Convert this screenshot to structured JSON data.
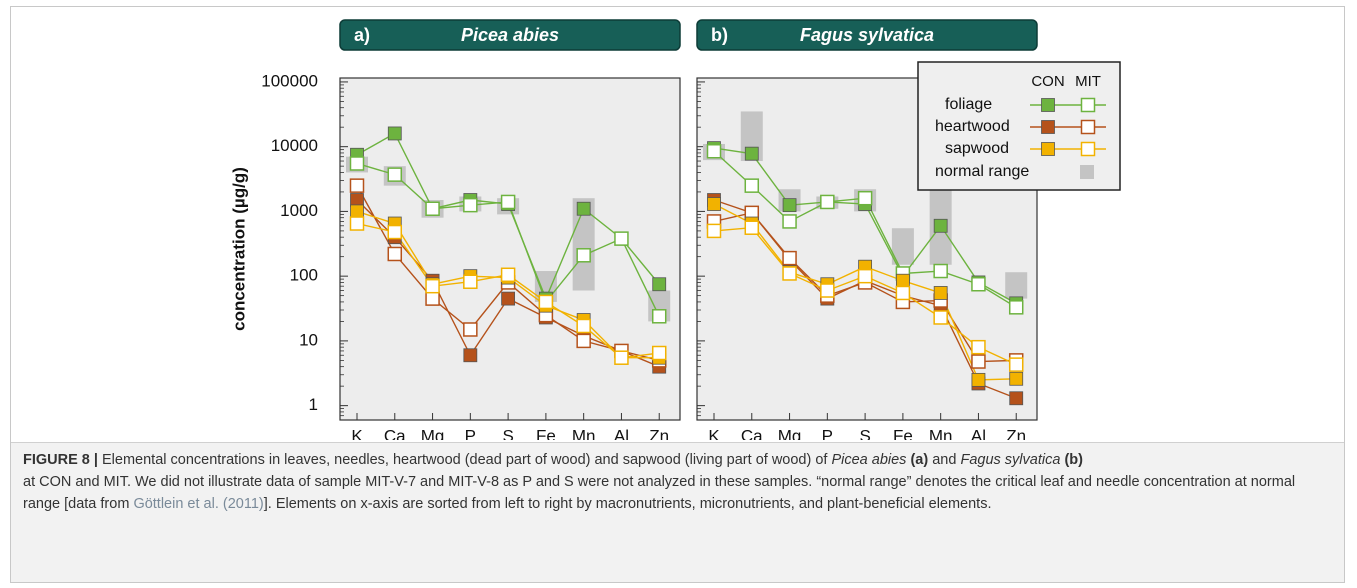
{
  "chart_data": [
    {
      "type": "line",
      "panel_label": "a)",
      "species": "Picea abies",
      "y_label": "concentration (µg/g)",
      "categories": [
        "K",
        "Ca",
        "Mg",
        "P",
        "S",
        "Fe",
        "Mn",
        "Al",
        "Zn"
      ],
      "log_scale": true,
      "ylim": [
        0.6,
        115000
      ],
      "yticks": [
        1,
        10,
        100,
        1000,
        10000,
        100000
      ],
      "ranges": [
        [
          4000,
          7000
        ],
        [
          2500,
          5000
        ],
        [
          800,
          1500
        ],
        [
          1000,
          1700
        ],
        [
          900,
          1600
        ],
        [
          40,
          120
        ],
        [
          60,
          1600
        ],
        null,
        [
          20,
          60
        ]
      ],
      "series": [
        {
          "values": [
            [
              7500,
              16000,
              1100,
              1500,
              1300,
              45,
              1100,
              380,
              75
            ],
            [
              5500,
              3700,
              1100,
              1250,
              1400,
              40,
              210,
              380,
              24
            ]
          ]
        },
        {
          "values": [
            [
              1500,
              400,
              85,
              6,
              45,
              23,
              12,
              7,
              4
            ],
            [
              2500,
              220,
              45,
              15,
              80,
              25,
              10,
              7,
              5
            ]
          ]
        },
        {
          "values": [
            [
              1000,
              650,
              75,
              100,
              95,
              35,
              21,
              5.5,
              5.5
            ],
            [
              650,
              480,
              70,
              82,
              105,
              40,
              17,
              5.5,
              6.5
            ]
          ]
        }
      ]
    },
    {
      "type": "line",
      "panel_label": "b)",
      "species": "Fagus sylvatica",
      "categories": [
        "K",
        "Ca",
        "Mg",
        "P",
        "S",
        "Fe",
        "Mn",
        "Al",
        "Zn"
      ],
      "log_scale": true,
      "ylim": [
        0.6,
        115000
      ],
      "ranges": [
        [
          6200,
          11000
        ],
        [
          6000,
          35000
        ],
        [
          1000,
          2200
        ],
        [
          1100,
          1700
        ],
        [
          1000,
          2200
        ],
        [
          150,
          550
        ],
        [
          150,
          2200
        ],
        null,
        [
          45,
          115
        ]
      ],
      "series": [
        {
          "values": [
            [
              9500,
              7800,
              1250,
              1400,
              1300,
              100,
              600,
              80,
              38
            ],
            [
              8500,
              2500,
              700,
              1400,
              1600,
              110,
              120,
              75,
              33
            ]
          ]
        },
        {
          "values": [
            [
              1500,
              950,
              180,
              45,
              85,
              50,
              35,
              2.2,
              1.3
            ],
            [
              700,
              950,
              190,
              50,
              80,
              40,
              42,
              4.8,
              5
            ]
          ]
        },
        {
          "values": [
            [
              1300,
              650,
              115,
              75,
              140,
              85,
              55,
              2.5,
              2.6
            ],
            [
              500,
              560,
              110,
              60,
              100,
              55,
              23,
              8,
              4.3
            ]
          ]
        }
      ]
    }
  ],
  "legend": {
    "groups": [
      "CON",
      "MIT"
    ],
    "series": [
      {
        "name": "foliage",
        "color": "#6db33f"
      },
      {
        "name": "heartwood",
        "color": "#b5521b"
      },
      {
        "name": "sapwood",
        "color": "#f2b200"
      }
    ],
    "range_label": "normal range",
    "range_color": "#c4c4c4"
  },
  "caption": {
    "label": "FIGURE 8 |",
    "text1": "Elemental concentrations in leaves, needles, heartwood (dead part of wood) and sapwood (living part of wood) of",
    "species_a": "Picea abies",
    "ref_a": "(a)",
    "and": "and",
    "species_b": "Fagus sylvatica",
    "ref_b": "(b)",
    "text2": "at CON and MIT. We did not illustrate data of sample MIT-V-7 and MIT-V-8 as P and S were not analyzed in these samples. “normal range” denotes the critical leaf and needle concentration at normal range [data from",
    "citation": "Göttlein et al. (2011)",
    "text3": "]. Elements on x-axis are sorted from left to right by macronutrients, micronutrients, and plant-beneficial elements."
  }
}
